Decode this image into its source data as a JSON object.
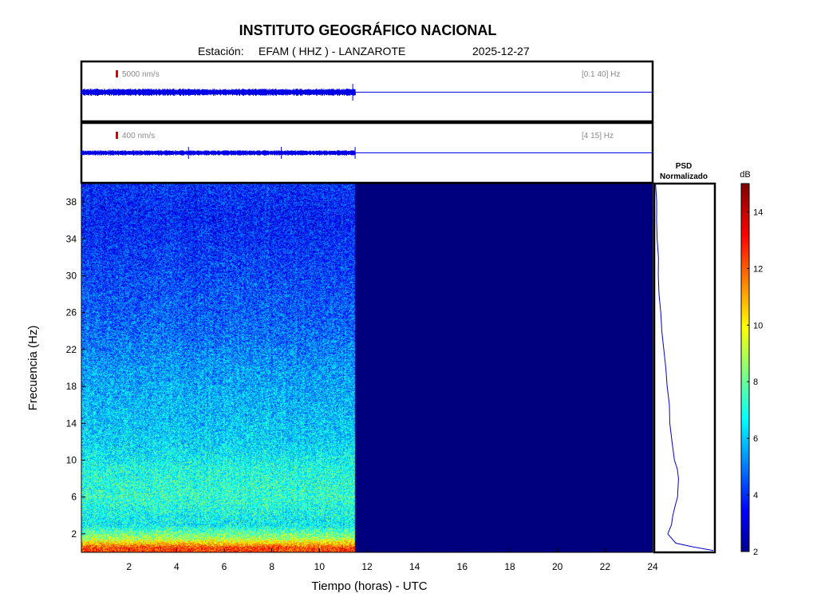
{
  "header": {
    "title": "INSTITUTO GEOGRÁFICO NACIONAL",
    "station_label": "Estación:",
    "station": "EFAM ( HHZ ) - LANZAROTE",
    "date": "2025-12-27"
  },
  "colors": {
    "trace": "#0000e6",
    "scale_marker": "#e00000",
    "background_empty": "#00008f"
  },
  "chart_data": [
    {
      "type": "line",
      "name": "trace-broadband",
      "scale_label": "5000 nm/s",
      "band_label": "[0.1 40] Hz",
      "data_until_hours": 11.5,
      "x_range": [
        0,
        24
      ]
    },
    {
      "type": "line",
      "name": "trace-filtered",
      "scale_label": "400 nm/s",
      "band_label": "[4 15] Hz",
      "data_until_hours": 11.5,
      "x_range": [
        0,
        24
      ]
    },
    {
      "type": "heatmap",
      "xlabel": "Tiempo (horas) - UTC",
      "ylabel": "Frecuencia  (Hz)",
      "xlim": [
        0,
        24
      ],
      "ylim": [
        0,
        40
      ],
      "xticks": [
        2,
        4,
        6,
        8,
        10,
        12,
        14,
        16,
        18,
        20,
        22,
        24
      ],
      "yticks": [
        2,
        6,
        10,
        14,
        18,
        22,
        26,
        30,
        34,
        38
      ],
      "data_until_hours": 11.5,
      "colormap": "jet",
      "colorbar": {
        "label": "dB",
        "range": [
          2,
          15
        ],
        "ticks": [
          2,
          4,
          6,
          8,
          10,
          12,
          14
        ]
      },
      "approx_level_db_by_frequency": [
        {
          "freq": 0.5,
          "db": 12.5
        },
        {
          "freq": 1.5,
          "db": 9.0
        },
        {
          "freq": 3,
          "db": 6.8
        },
        {
          "freq": 6,
          "db": 7.5
        },
        {
          "freq": 9,
          "db": 7.2
        },
        {
          "freq": 12,
          "db": 6.4
        },
        {
          "freq": 16,
          "db": 6.0
        },
        {
          "freq": 20,
          "db": 5.6
        },
        {
          "freq": 24,
          "db": 5.0
        },
        {
          "freq": 30,
          "db": 4.5
        },
        {
          "freq": 36,
          "db": 4.0
        },
        {
          "freq": 40,
          "db": 4.2
        }
      ]
    },
    {
      "type": "line",
      "title": "PSD\nNormalizado",
      "title_lines": [
        "PSD",
        "Normalizado"
      ],
      "x_range": [
        0,
        1
      ],
      "y_range": [
        0,
        40
      ],
      "points": [
        {
          "freq": 0.2,
          "value": 1.0
        },
        {
          "freq": 0.6,
          "value": 0.65
        },
        {
          "freq": 1.0,
          "value": 0.35
        },
        {
          "freq": 2.0,
          "value": 0.2
        },
        {
          "freq": 3.0,
          "value": 0.28
        },
        {
          "freq": 4.0,
          "value": 0.3
        },
        {
          "freq": 5.0,
          "value": 0.33
        },
        {
          "freq": 6.0,
          "value": 0.38
        },
        {
          "freq": 7.0,
          "value": 0.39
        },
        {
          "freq": 8.0,
          "value": 0.4
        },
        {
          "freq": 9.0,
          "value": 0.38
        },
        {
          "freq": 10.0,
          "value": 0.33
        },
        {
          "freq": 12.0,
          "value": 0.28
        },
        {
          "freq": 14.0,
          "value": 0.25
        },
        {
          "freq": 16.0,
          "value": 0.23
        },
        {
          "freq": 18.0,
          "value": 0.2
        },
        {
          "freq": 20.0,
          "value": 0.17
        },
        {
          "freq": 22.0,
          "value": 0.14
        },
        {
          "freq": 24.0,
          "value": 0.11
        },
        {
          "freq": 26.0,
          "value": 0.08
        },
        {
          "freq": 28.0,
          "value": 0.06
        },
        {
          "freq": 30.0,
          "value": 0.05
        },
        {
          "freq": 32.0,
          "value": 0.04
        },
        {
          "freq": 34.0,
          "value": 0.02
        },
        {
          "freq": 36.0,
          "value": 0.01
        },
        {
          "freq": 38.0,
          "value": 0.01
        },
        {
          "freq": 40.0,
          "value": 0.0
        }
      ]
    }
  ]
}
